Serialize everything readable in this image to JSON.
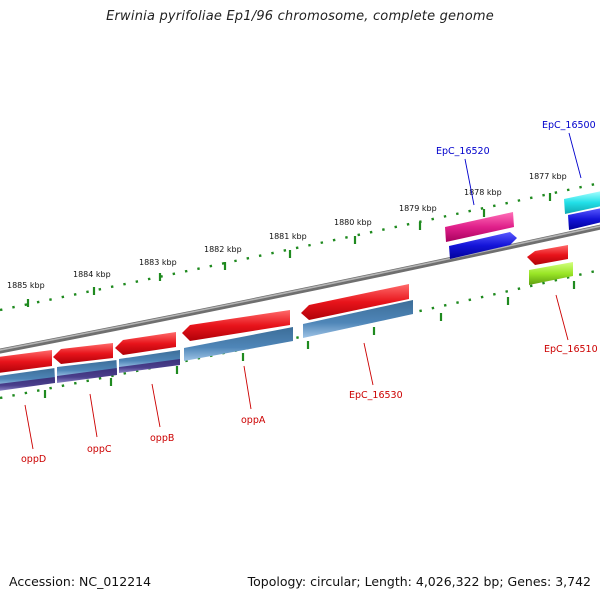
{
  "title": "Erwinia pyrifoliae Ep1/96 chromosome, complete genome",
  "footer": {
    "accession": "Accession: NC_012214",
    "summary": "Topology: circular; Length: 4,026,322 bp; Genes: 3,742"
  },
  "ruler_labels": [
    "1885 kbp",
    "1884 kbp",
    "1883 kbp",
    "1882 kbp",
    "1881 kbp",
    "1880 kbp",
    "1879 kbp",
    "1878 kbp",
    "1877 kbp"
  ],
  "gene_labels": {
    "oppD": "oppD",
    "oppC": "oppC",
    "oppB": "oppB",
    "oppA": "oppA",
    "EpC_16530": "EpC_16530",
    "EpC_16520": "EpC_16520",
    "EpC_16510": "EpC_16510",
    "EpC_16500": "EpC_16500"
  },
  "colors": {
    "backbone": "#8a8a8a",
    "tick": "#1f8a1f",
    "cds_red": "#e8141b",
    "cds_steelblue": "#4a7fb0",
    "cds_purple": "#4a3f8c",
    "cds_magenta": "#e0208a",
    "cds_blue": "#1414d8",
    "cds_cyan": "#22e0e8",
    "cds_green": "#9ae626",
    "label_red": "#cc0000",
    "label_blue": "#0000cc"
  }
}
